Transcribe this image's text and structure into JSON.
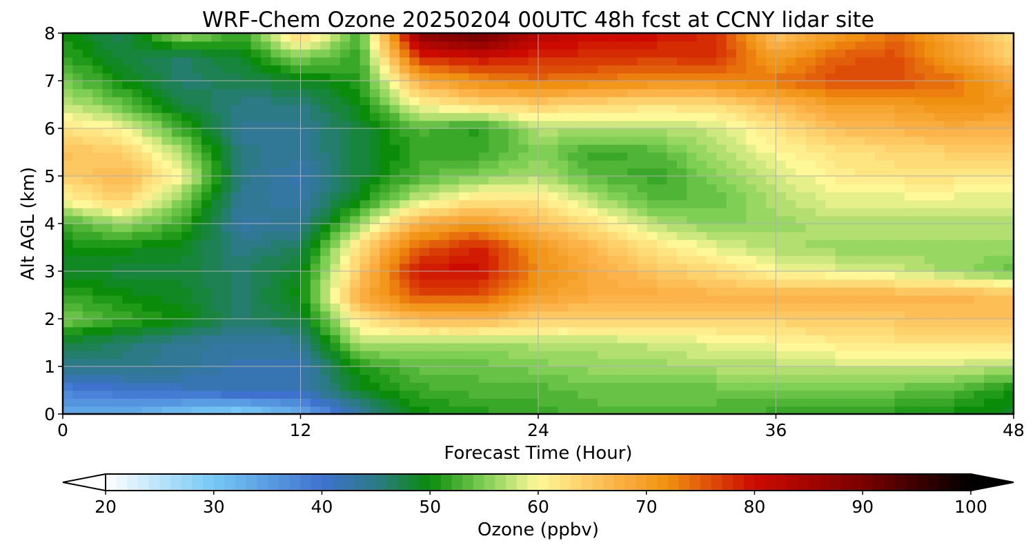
{
  "chart_data": {
    "type": "heatmap",
    "title": "WRF-Chem Ozone  20250204 00UTC 48h fcst at CCNY lidar site",
    "xlabel": "Forecast Time (Hour)",
    "ylabel": "Alt AGL (km)",
    "xlim": [
      0,
      48
    ],
    "ylim": [
      0,
      8
    ],
    "x_ticks": [
      "0",
      "12",
      "24",
      "36",
      "48"
    ],
    "y_ticks": [
      "0",
      "1",
      "2",
      "3",
      "4",
      "5",
      "6",
      "7",
      "8"
    ],
    "grid": true,
    "x": [
      0,
      3,
      6,
      9,
      12,
      15,
      18,
      21,
      24,
      27,
      30,
      33,
      36,
      39,
      42,
      45,
      48
    ],
    "y": [
      0,
      0.5,
      1,
      1.5,
      2,
      2.5,
      3,
      3.5,
      4,
      4.5,
      5,
      5.5,
      6,
      6.5,
      7,
      7.5,
      8
    ],
    "z_rows_by_altitude": [
      [
        33,
        33,
        30,
        28,
        33,
        43,
        50,
        51,
        52,
        53,
        53,
        53,
        52,
        52,
        51,
        50,
        49
      ],
      [
        38,
        40,
        41,
        42,
        42,
        49,
        52,
        53,
        53,
        54,
        54,
        54,
        54,
        54,
        54,
        53,
        50
      ],
      [
        45,
        45,
        44,
        42,
        42,
        51,
        54,
        54,
        55,
        56,
        56,
        57,
        57,
        58,
        58,
        58,
        57
      ],
      [
        48,
        46,
        44,
        43,
        44,
        57,
        57,
        56,
        57,
        57,
        58,
        59,
        60,
        61,
        62,
        62,
        62
      ],
      [
        55,
        52,
        50,
        46,
        48,
        62,
        66,
        67,
        64,
        64,
        64,
        64,
        64,
        65,
        65,
        66,
        66
      ],
      [
        52,
        50,
        49,
        46,
        50,
        68,
        76,
        76,
        70,
        68,
        68,
        67,
        67,
        67,
        67,
        67,
        66
      ],
      [
        49,
        48,
        48,
        46,
        49,
        65,
        80,
        80,
        72,
        68,
        65,
        63,
        60,
        59,
        58,
        56,
        54
      ],
      [
        50,
        50,
        49,
        45,
        47,
        63,
        75,
        79,
        71,
        66,
        62,
        59,
        57,
        56,
        56,
        56,
        56
      ],
      [
        52,
        56,
        52,
        43,
        44,
        56,
        68,
        71,
        66,
        62,
        57,
        55,
        56,
        57,
        57,
        57,
        57
      ],
      [
        60,
        64,
        55,
        44,
        43,
        50,
        58,
        62,
        62,
        57,
        53,
        54,
        57,
        59,
        59,
        59,
        59
      ],
      [
        64,
        67,
        60,
        45,
        42,
        48,
        53,
        55,
        57,
        53,
        52,
        55,
        58,
        61,
        62,
        62,
        61
      ],
      [
        66,
        64,
        57,
        45,
        44,
        48,
        52,
        52,
        55,
        52,
        53,
        57,
        60,
        62,
        63,
        64,
        64
      ],
      [
        62,
        60,
        52,
        44,
        44,
        48,
        53,
        51,
        57,
        57,
        57,
        58,
        62,
        66,
        67,
        68,
        67
      ],
      [
        58,
        54,
        48,
        45,
        45,
        50,
        60,
        63,
        64,
        63,
        62,
        63,
        66,
        70,
        70,
        72,
        71
      ],
      [
        55,
        50,
        46,
        47,
        49,
        51,
        68,
        72,
        74,
        73,
        72,
        72,
        74,
        76,
        76,
        74,
        68
      ],
      [
        52,
        48,
        46,
        49,
        55,
        52,
        78,
        80,
        78,
        78,
        77,
        78,
        70,
        75,
        76,
        70,
        64
      ],
      [
        50,
        47,
        57,
        52,
        65,
        52,
        88,
        92,
        83,
        80,
        80,
        78,
        65,
        70,
        74,
        68,
        62
      ]
    ],
    "colorbar": {
      "label": "Ozone  (ppbv)",
      "min": 20,
      "max": 100,
      "ticks": [
        "20",
        "30",
        "40",
        "50",
        "60",
        "70",
        "80",
        "90",
        "100"
      ],
      "extend": "both",
      "stops": [
        {
          "v": 20,
          "c": "#ffffff"
        },
        {
          "v": 30,
          "c": "#75c8f5"
        },
        {
          "v": 40,
          "c": "#3f72cf"
        },
        {
          "v": 45,
          "c": "#2c7a86"
        },
        {
          "v": 50,
          "c": "#0a8c0a"
        },
        {
          "v": 55,
          "c": "#7fcf55"
        },
        {
          "v": 60,
          "c": "#fff899"
        },
        {
          "v": 67,
          "c": "#fcb44a"
        },
        {
          "v": 72,
          "c": "#f09010"
        },
        {
          "v": 80,
          "c": "#cc0a00"
        },
        {
          "v": 90,
          "c": "#7a0000"
        },
        {
          "v": 100,
          "c": "#000000"
        }
      ]
    }
  }
}
